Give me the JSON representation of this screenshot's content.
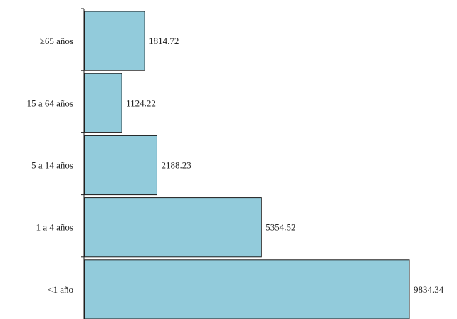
{
  "chart_data": {
    "type": "bar",
    "orientation": "horizontal",
    "categories": [
      "≥65 años",
      "15 a 64 años",
      "5 a 14 años",
      "1 a 4 años",
      "<1 año"
    ],
    "values": [
      1814.72,
      1124.22,
      2188.23,
      5354.52,
      9834.34
    ],
    "value_labels": [
      "1814.72",
      "1124.22",
      "2188.23",
      "5354.52",
      "9834.34"
    ],
    "xlim": [
      0,
      9834.34
    ],
    "grid": false,
    "legend": "none",
    "bar_color": "#92cbdb",
    "bar_edge_color": "#1a1a1a"
  }
}
